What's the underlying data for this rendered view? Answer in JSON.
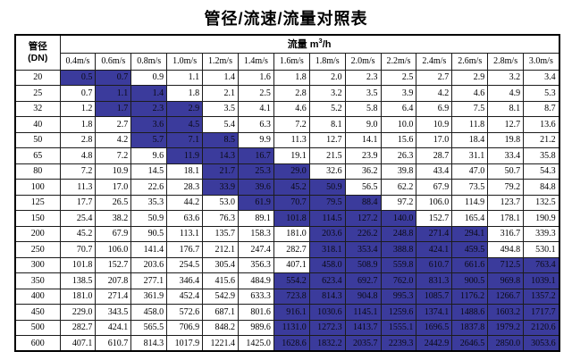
{
  "title": "管径/流速/流量对照表",
  "header": {
    "corner_line1": "管径",
    "corner_line2": "(DN)",
    "flow_prefix": "流量 m",
    "flow_sup": "3",
    "flow_suffix": "/h"
  },
  "colors": {
    "highlight": "#3b3b9c",
    "border": "#1c1c1c"
  },
  "chart_data": {
    "type": "table",
    "title": "管径/流速/流量对照表",
    "row_header": "管径 (DN)",
    "column_group_header": "流量 m³/h",
    "columns": [
      "0.4m/s",
      "0.6m/s",
      "0.8m/s",
      "1.0m/s",
      "1.2m/s",
      "1.4m/s",
      "1.6m/s",
      "1.8m/s",
      "2.0m/s",
      "2.2m/s",
      "2.4m/s",
      "2.6m/s",
      "2.8m/s",
      "3.0m/s"
    ],
    "rows": [
      {
        "dn": "20",
        "values": [
          "0.5",
          "0.7",
          "0.9",
          "1.1",
          "1.4",
          "1.6",
          "1.8",
          "2.0",
          "2.3",
          "2.5",
          "2.7",
          "2.9",
          "3.2",
          "3.4"
        ],
        "highlight": [
          0,
          1
        ]
      },
      {
        "dn": "25",
        "values": [
          "0.7",
          "1.1",
          "1.4",
          "1.8",
          "2.1",
          "2.5",
          "2.8",
          "3.2",
          "3.5",
          "3.9",
          "4.2",
          "4.6",
          "4.9",
          "5.3"
        ],
        "highlight": [
          1,
          2
        ]
      },
      {
        "dn": "32",
        "values": [
          "1.2",
          "1.7",
          "2.3",
          "2.9",
          "3.5",
          "4.1",
          "4.6",
          "5.2",
          "5.8",
          "6.4",
          "6.9",
          "7.5",
          "8.1",
          "8.7"
        ],
        "highlight": [
          1,
          2,
          3
        ]
      },
      {
        "dn": "40",
        "values": [
          "1.8",
          "2.7",
          "3.6",
          "4.5",
          "5.4",
          "6.3",
          "7.2",
          "8.1",
          "9.0",
          "10.0",
          "10.9",
          "11.8",
          "12.7",
          "13.6"
        ],
        "highlight": [
          2,
          3
        ]
      },
      {
        "dn": "50",
        "values": [
          "2.8",
          "4.2",
          "5.7",
          "7.1",
          "8.5",
          "9.9",
          "11.3",
          "12.7",
          "14.1",
          "15.6",
          "17.0",
          "18.4",
          "19.8",
          "21.2"
        ],
        "highlight": [
          2,
          3,
          4
        ]
      },
      {
        "dn": "65",
        "values": [
          "4.8",
          "7.2",
          "9.6",
          "11.9",
          "14.3",
          "16.7",
          "19.1",
          "21.5",
          "23.9",
          "26.3",
          "28.7",
          "31.1",
          "33.4",
          "35.8"
        ],
        "highlight": [
          3,
          4,
          5
        ]
      },
      {
        "dn": "80",
        "values": [
          "7.2",
          "10.9",
          "14.5",
          "18.1",
          "21.7",
          "25.3",
          "29.0",
          "32.6",
          "36.2",
          "39.8",
          "43.4",
          "47.0",
          "50.7",
          "54.3"
        ],
        "highlight": [
          4,
          5,
          6
        ]
      },
      {
        "dn": "100",
        "values": [
          "11.3",
          "17.0",
          "22.6",
          "28.3",
          "33.9",
          "39.6",
          "45.2",
          "50.9",
          "56.5",
          "62.2",
          "67.9",
          "73.5",
          "79.2",
          "84.8"
        ],
        "highlight": [
          4,
          5,
          6,
          7
        ]
      },
      {
        "dn": "125",
        "values": [
          "17.7",
          "26.5",
          "35.3",
          "44.2",
          "53.0",
          "61.9",
          "70.7",
          "79.5",
          "88.4",
          "97.2",
          "106.0",
          "114.9",
          "123.7",
          "132.5"
        ],
        "highlight": [
          5,
          6,
          7,
          8
        ]
      },
      {
        "dn": "150",
        "values": [
          "25.4",
          "38.2",
          "50.9",
          "63.6",
          "76.3",
          "89.1",
          "101.8",
          "114.5",
          "127.2",
          "140.0",
          "152.7",
          "165.4",
          "178.1",
          "190.9"
        ],
        "highlight": [
          6,
          7,
          8,
          9
        ]
      },
      {
        "dn": "200",
        "values": [
          "45.2",
          "67.9",
          "90.5",
          "113.1",
          "135.7",
          "158.3",
          "181.0",
          "203.6",
          "226.2",
          "248.8",
          "271.4",
          "294.1",
          "316.7",
          "339.3"
        ],
        "highlight": [
          7,
          8,
          9,
          10,
          11
        ]
      },
      {
        "dn": "250",
        "values": [
          "70.7",
          "106.0",
          "141.4",
          "176.7",
          "212.1",
          "247.4",
          "282.7",
          "318.1",
          "353.4",
          "388.8",
          "424.1",
          "459.5",
          "494.8",
          "530.1"
        ],
        "highlight": [
          7,
          8,
          9,
          10,
          11
        ]
      },
      {
        "dn": "300",
        "values": [
          "101.8",
          "152.7",
          "203.6",
          "254.5",
          "305.4",
          "356.3",
          "407.1",
          "458.0",
          "508.9",
          "559.8",
          "610.7",
          "661.6",
          "712.5",
          "763.4"
        ],
        "highlight": [
          7,
          8,
          9,
          10,
          11,
          12,
          13
        ]
      },
      {
        "dn": "350",
        "values": [
          "138.5",
          "207.8",
          "277.1",
          "346.4",
          "415.6",
          "484.9",
          "554.2",
          "623.4",
          "692.7",
          "762.0",
          "831.3",
          "900.5",
          "969.8",
          "1039.1"
        ],
        "highlight": [
          6,
          7,
          8,
          9,
          10,
          11,
          12,
          13
        ]
      },
      {
        "dn": "400",
        "values": [
          "181.0",
          "271.4",
          "361.9",
          "452.4",
          "542.9",
          "633.3",
          "723.8",
          "814.3",
          "904.8",
          "995.3",
          "1085.7",
          "1176.2",
          "1266.7",
          "1357.2"
        ],
        "highlight": [
          6,
          7,
          8,
          9,
          10,
          11,
          12,
          13
        ]
      },
      {
        "dn": "450",
        "values": [
          "229.0",
          "343.5",
          "458.0",
          "572.6",
          "687.1",
          "801.6",
          "916.1",
          "1030.6",
          "1145.1",
          "1259.6",
          "1374.1",
          "1488.6",
          "1603.2",
          "1717.7"
        ],
        "highlight": [
          6,
          7,
          8,
          9,
          10,
          11,
          12,
          13
        ]
      },
      {
        "dn": "500",
        "values": [
          "282.7",
          "424.1",
          "565.5",
          "706.9",
          "848.2",
          "989.6",
          "1131.0",
          "1272.3",
          "1413.7",
          "1555.1",
          "1696.5",
          "1837.8",
          "1979.2",
          "2120.6"
        ],
        "highlight": [
          6,
          7,
          8,
          9,
          10,
          11,
          12,
          13
        ]
      },
      {
        "dn": "600",
        "values": [
          "407.1",
          "610.7",
          "814.3",
          "1017.9",
          "1221.4",
          "1425.0",
          "1628.6",
          "1832.2",
          "2035.7",
          "2239.3",
          "2442.9",
          "2646.5",
          "2850.0",
          "3053.6"
        ],
        "highlight": [
          6,
          7,
          8,
          9,
          10,
          11,
          12,
          13
        ]
      }
    ]
  }
}
